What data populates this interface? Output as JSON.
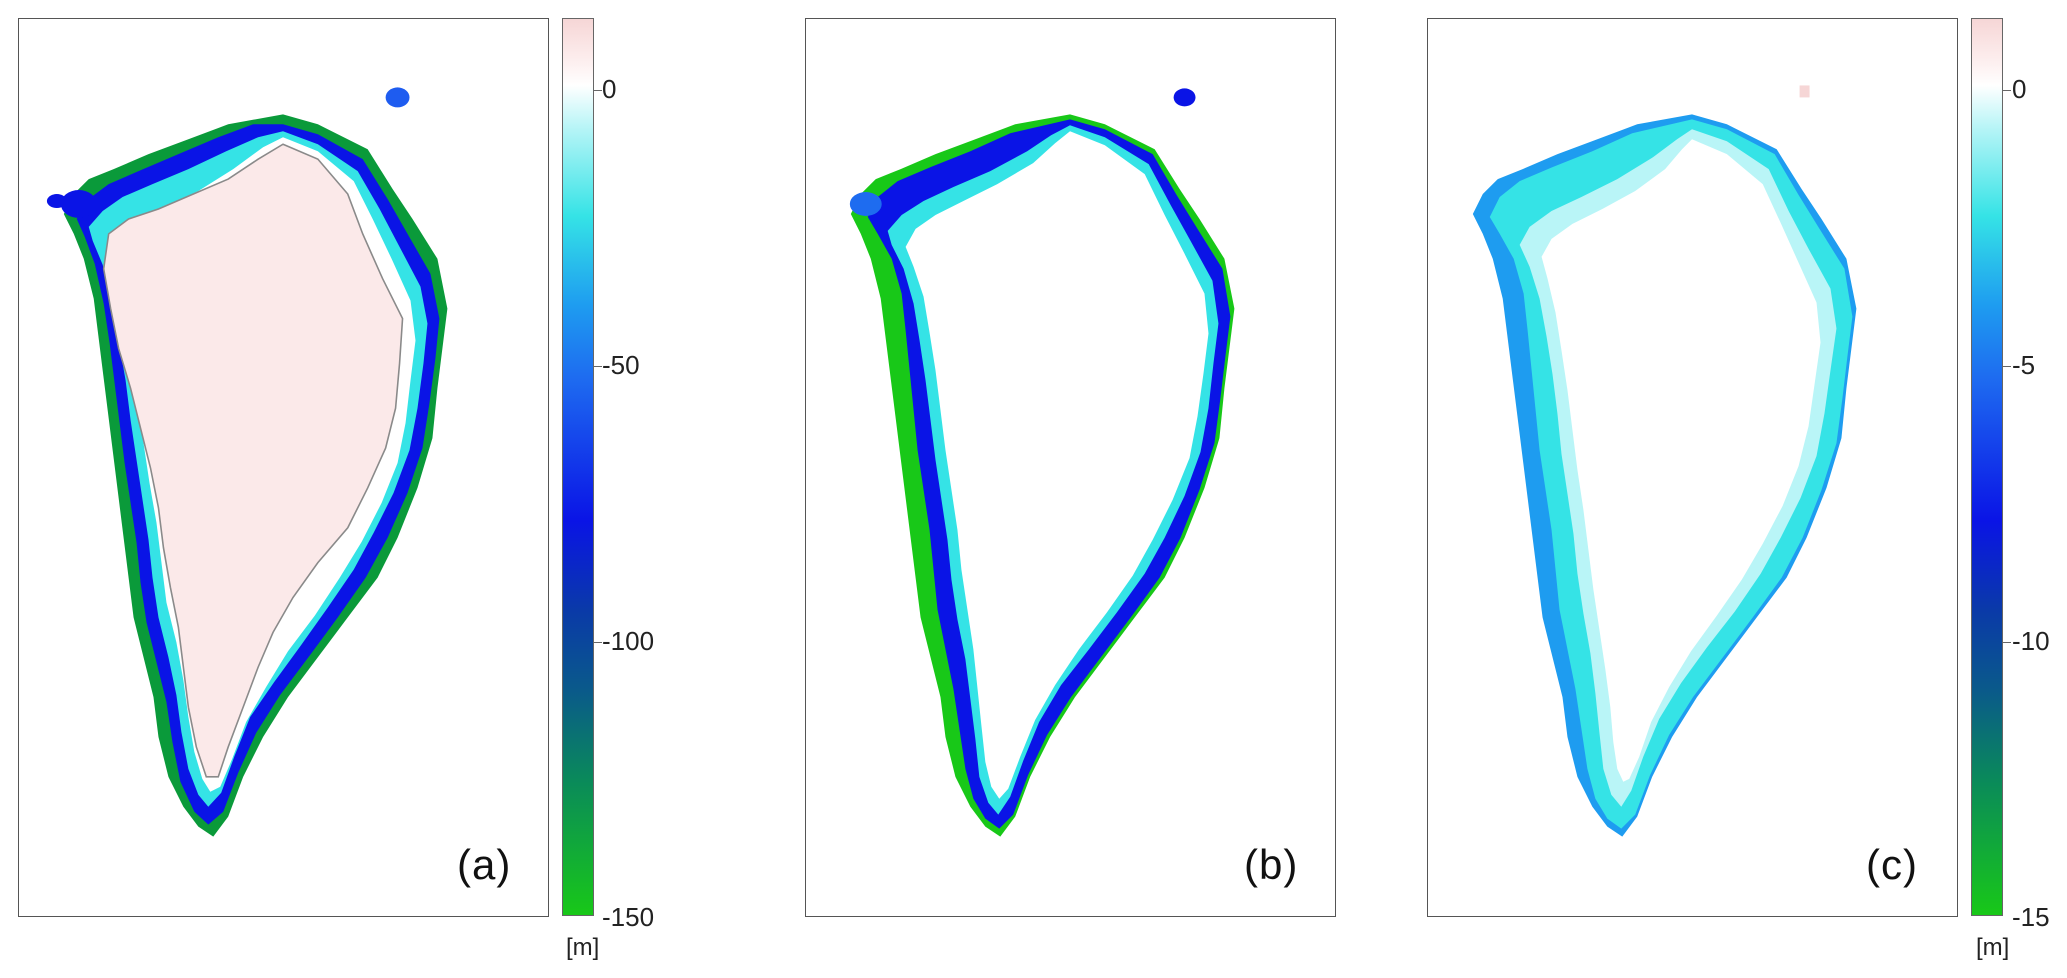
{
  "panels": [
    {
      "label": "(a)"
    },
    {
      "label": "(b)"
    },
    {
      "label": "(c)"
    }
  ],
  "colorbars": [
    {
      "ticks": [
        "0",
        "-50",
        "-100",
        "-150"
      ],
      "tick_values": [
        0,
        -50,
        -100,
        -150
      ],
      "min": -150,
      "max": 12,
      "unit": "[m]"
    },
    {
      "ticks": [
        "0",
        "-5",
        "-10",
        "-15"
      ],
      "tick_values": [
        0,
        -5,
        -10,
        -15
      ],
      "min": -15,
      "max": 1.2,
      "unit": "[m]"
    }
  ],
  "colors": {
    "positive": "#f6d6d6",
    "zero": "#ffffff",
    "cyan": "#35e3e6",
    "mid_blue": "#1e7cf0",
    "deep_blue": "#0a14e6",
    "dark_teal": "#0a5a8a",
    "green": "#18c818",
    "contour": "#8a8a8a"
  }
}
